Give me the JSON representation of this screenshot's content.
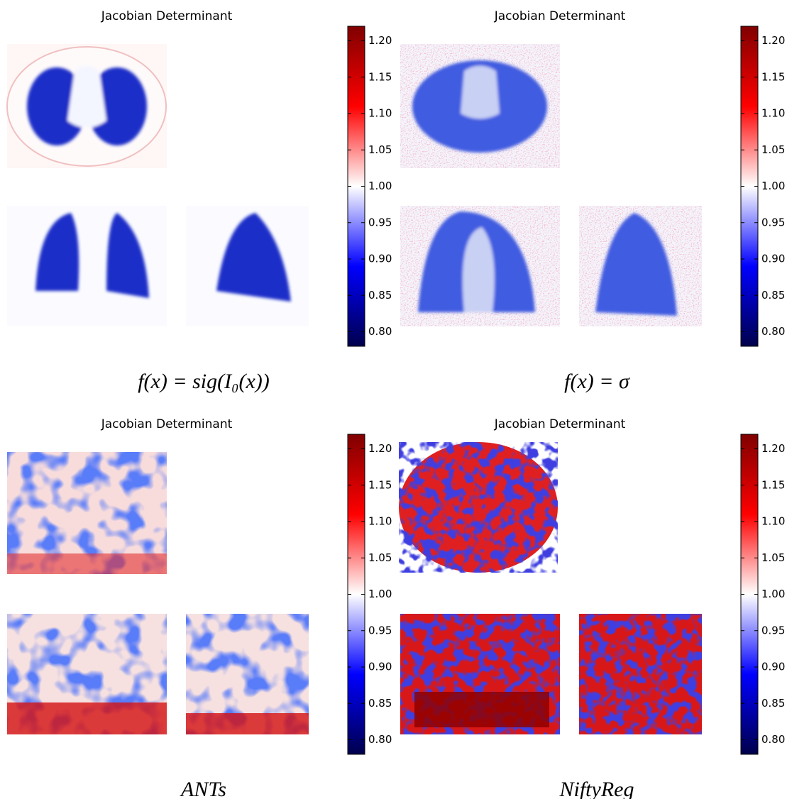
{
  "chart_data": [
    {
      "type": "image",
      "title": "Jacobian Determinant",
      "caption": "f(x) = sig(I₀(x))",
      "colorbar": {
        "cmap": "seismic",
        "clim": [
          0.78,
          1.22
        ],
        "ticks": [
          {
            "value": 0.8,
            "label": "0.80"
          },
          0.85,
          {
            "value": 0.9,
            "label": "0.90"
          },
          0.95,
          {
            "value": 1.0,
            "label": "1.00"
          },
          1.05,
          {
            "value": 1.1,
            "label": "1.10"
          },
          1.15,
          {
            "value": 1.2,
            "label": "1.20"
          }
        ]
      }
    },
    {
      "type": "image",
      "title": "Jacobian Determinant",
      "caption": "f(x) = σ",
      "colorbar": {
        "cmap": "seismic",
        "clim": [
          0.78,
          1.22
        ],
        "ticks": [
          {
            "value": 0.8,
            "label": "0.80"
          },
          0.85,
          {
            "value": 0.9,
            "label": "0.90"
          },
          0.95,
          {
            "value": 1.0,
            "label": "1.00"
          },
          1.05,
          {
            "value": 1.1,
            "label": "1.10"
          },
          1.15,
          {
            "value": 1.2,
            "label": "1.20"
          }
        ]
      }
    },
    {
      "type": "image",
      "title": "Jacobian Determinant",
      "caption": "ANTs",
      "colorbar": {
        "cmap": "seismic",
        "clim": [
          0.78,
          1.22
        ],
        "ticks": [
          {
            "value": 0.8,
            "label": "0.80"
          },
          0.85,
          {
            "value": 0.9,
            "label": "0.90"
          },
          0.95,
          {
            "value": 1.0,
            "label": "1.00"
          },
          1.05,
          {
            "value": 1.1,
            "label": "1.10"
          },
          1.15,
          {
            "value": 1.2,
            "label": "1.20"
          }
        ]
      }
    },
    {
      "type": "image",
      "title": "Jacobian Determinant",
      "caption": "NiftyReg",
      "colorbar": {
        "cmap": "seismic",
        "clim": [
          0.78,
          1.22
        ],
        "ticks": [
          {
            "value": 0.8,
            "label": "0.80"
          },
          0.85,
          {
            "value": 0.9,
            "label": "0.90"
          },
          0.95,
          {
            "value": 1.0,
            "label": "1.00"
          },
          1.05,
          {
            "value": 1.1,
            "label": "1.10"
          },
          1.15,
          {
            "value": 1.2,
            "label": "1.20"
          }
        ]
      }
    }
  ]
}
